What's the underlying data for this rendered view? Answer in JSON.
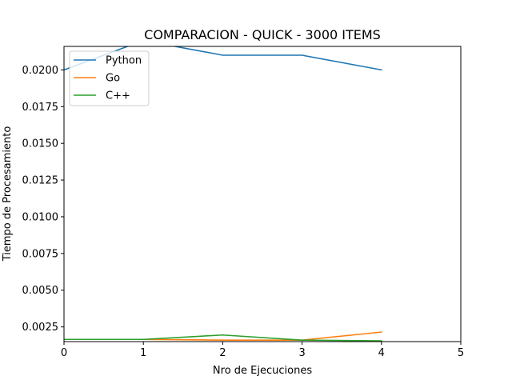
{
  "chart_data": {
    "type": "line",
    "title": "COMPARACION - QUICK - 3000 ITEMS",
    "xlabel": "Nro de Ejecuciones",
    "ylabel": "Tiempo de Procesamiento",
    "xlim": [
      0,
      5
    ],
    "ylim": [
      0.0015,
      0.0216
    ],
    "xticks": [
      "0",
      "1",
      "2",
      "3",
      "4",
      "5"
    ],
    "yticks": [
      "0.0025",
      "0.0050",
      "0.0075",
      "0.0100",
      "0.0125",
      "0.0150",
      "0.0175",
      "0.0200"
    ],
    "legend_position": "upper left",
    "grid": false,
    "series": [
      {
        "name": "Python",
        "color": "#1f77b4",
        "x": [
          0,
          1,
          2,
          3,
          4
        ],
        "y": [
          0.02,
          0.022,
          0.021,
          0.021,
          0.02
        ]
      },
      {
        "name": "Go",
        "color": "#ff7f0e",
        "x": [
          0,
          1,
          2,
          3,
          4
        ],
        "y": [
          0.00165,
          0.00165,
          0.0016,
          0.0016,
          0.00215
        ]
      },
      {
        "name": "C++",
        "color": "#2ca02c",
        "x": [
          0,
          1,
          2,
          3,
          4
        ],
        "y": [
          0.00165,
          0.00165,
          0.00195,
          0.0016,
          0.00155
        ]
      }
    ]
  }
}
